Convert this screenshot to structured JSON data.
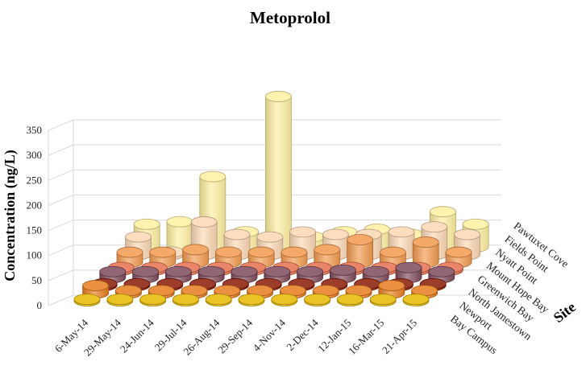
{
  "chart_data": {
    "type": "bar",
    "style": "3d-cylinder",
    "title": "Metoprolol",
    "ylabel": "Concentration (ng/L)",
    "zlabel": "Site",
    "ylim": [
      0,
      350
    ],
    "yticks": [
      0,
      50,
      100,
      150,
      200,
      250,
      300,
      350
    ],
    "categories": [
      "6-May-14",
      "29-May-14",
      "24-Jun-14",
      "29-Jul-14",
      "26-Aug-14",
      "29-Sep-14",
      "4-Nov-14",
      "2-Dec-14",
      "12-Jan-15",
      "16-Mar-15",
      "21-Apr-15"
    ],
    "series": [
      {
        "name": "Bay Campus",
        "color": "#E6B800",
        "values": [
          3,
          3,
          3,
          3,
          3,
          3,
          3,
          3,
          3,
          3,
          3
        ]
      },
      {
        "name": "Newport",
        "color": "#E87C1E",
        "values": [
          15,
          5,
          5,
          5,
          5,
          5,
          5,
          5,
          5,
          15,
          5
        ]
      },
      {
        "name": "North Jamestown",
        "color": "#8B1A06",
        "values": [
          3,
          3,
          3,
          3,
          3,
          3,
          3,
          3,
          3,
          3,
          3
        ]
      },
      {
        "name": "Greenwich Bay",
        "color": "#7E4A5A",
        "values": [
          12,
          12,
          12,
          12,
          12,
          12,
          12,
          15,
          12,
          20,
          12
        ]
      },
      {
        "name": "Mount Hope Bay",
        "color": "#E8704E",
        "values": [
          5,
          5,
          5,
          5,
          5,
          5,
          5,
          5,
          5,
          5,
          5
        ]
      },
      {
        "name": "Nyatt Point",
        "color": "#F39A4E",
        "values": [
          20,
          20,
          25,
          20,
          20,
          20,
          25,
          45,
          20,
          40,
          20
        ]
      },
      {
        "name": "Fields Point",
        "color": "#FCD8B4",
        "values": [
          35,
          5,
          65,
          40,
          35,
          45,
          40,
          40,
          45,
          55,
          40
        ]
      },
      {
        "name": "Pawtuxet Cove",
        "color": "#FFF0A0",
        "values": [
          45,
          50,
          140,
          30,
          300,
          20,
          30,
          35,
          25,
          70,
          45
        ]
      }
    ],
    "grid": true
  }
}
